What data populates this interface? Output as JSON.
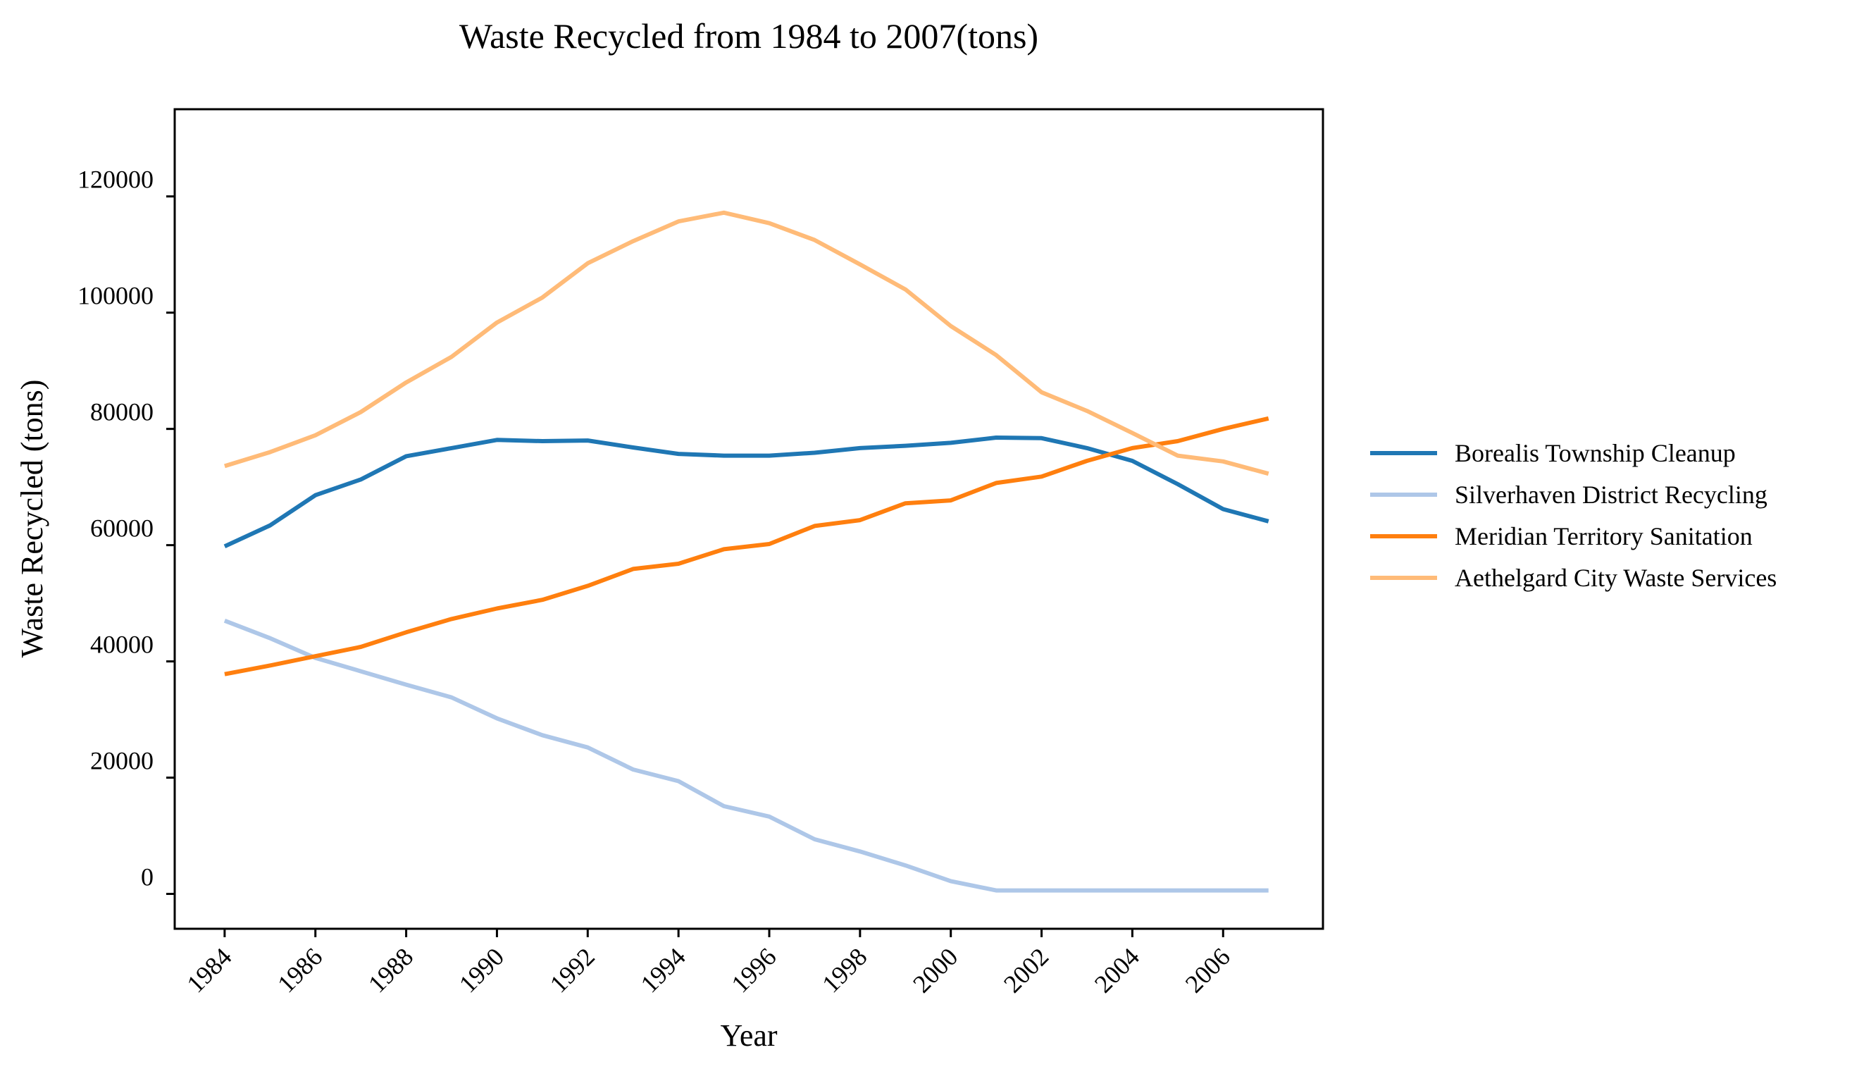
{
  "chart_data": {
    "type": "line",
    "title": "Waste Recycled from 1984 to 2007(tons)",
    "xlabel": "Year",
    "ylabel": "Waste Recycled (tons)",
    "xlim": [
      1982.9,
      2008.2
    ],
    "ylim": [
      -6000,
      135000
    ],
    "x_ticks": [
      1984,
      1986,
      1988,
      1990,
      1992,
      1994,
      1996,
      1998,
      2000,
      2002,
      2004,
      2006
    ],
    "y_ticks": [
      0,
      20000,
      40000,
      60000,
      80000,
      100000,
      120000
    ],
    "grid": false,
    "legend_position": "right",
    "x": [
      1984,
      1985,
      1986,
      1987,
      1988,
      1989,
      1990,
      1991,
      1992,
      1993,
      1994,
      1995,
      1996,
      1997,
      1998,
      1999,
      2000,
      2001,
      2002,
      2003,
      2004,
      2005,
      2006,
      2007
    ],
    "series": [
      {
        "name": "Borealis Township Cleanup",
        "color": "#1f77b4",
        "values": [
          59800,
          63400,
          68600,
          71300,
          75300,
          76700,
          78100,
          77900,
          78000,
          76800,
          75700,
          75400,
          75400,
          75900,
          76700,
          77100,
          77600,
          78500,
          78400,
          76700,
          74500,
          70500,
          66200,
          64100
        ]
      },
      {
        "name": "Silverhaven District Recycling",
        "color": "#aec7e8",
        "values": [
          47000,
          44000,
          40600,
          38300,
          36000,
          33800,
          30200,
          27300,
          25200,
          21400,
          19400,
          15100,
          13300,
          9400,
          7300,
          4900,
          2200,
          600,
          600,
          600,
          600,
          600,
          600,
          600
        ]
      },
      {
        "name": "Meridian Territory Sanitation",
        "color": "#ff7f0e",
        "values": [
          37800,
          39300,
          40900,
          42500,
          45000,
          47300,
          49100,
          50600,
          53000,
          55900,
          56800,
          59300,
          60200,
          63300,
          64300,
          67200,
          67700,
          70700,
          71800,
          74500,
          76700,
          77900,
          80000,
          81800
        ]
      },
      {
        "name": "Aethelgard City Waste Services",
        "color": "#ffbb78",
        "values": [
          73600,
          76000,
          78900,
          82900,
          88000,
          92400,
          98300,
          102600,
          108500,
          112300,
          115700,
          117200,
          115400,
          112500,
          108300,
          104000,
          97700,
          92700,
          86300,
          83100,
          79300,
          75400,
          74400,
          72300
        ]
      }
    ]
  }
}
